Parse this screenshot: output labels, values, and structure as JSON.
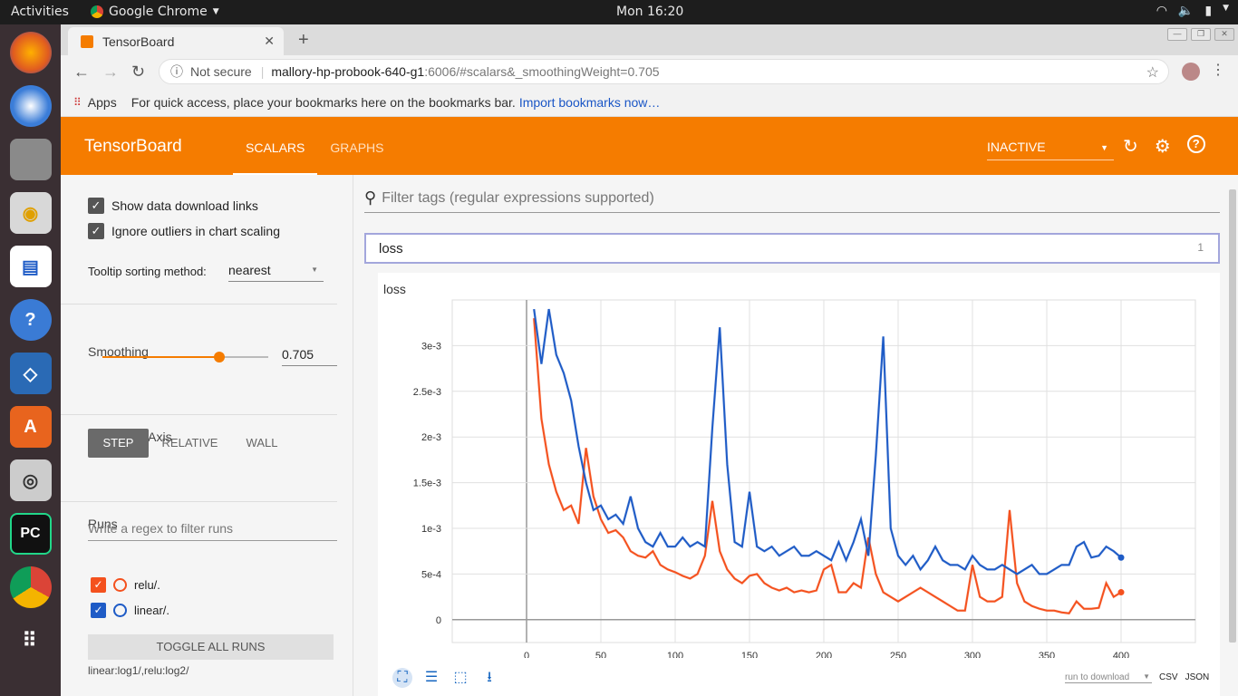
{
  "os": {
    "activities": "Activities",
    "app_name": "Google Chrome",
    "clock": "Mon 16:20"
  },
  "browser": {
    "tab_title": "TensorBoard",
    "security": "Not secure",
    "url_host": "mallory-hp-probook-640-g1",
    "url_path": ":6006/#scalars&_smoothingWeight=0.705",
    "bookmarks_apps": "Apps",
    "bookmarks_tip": "For quick access, place your bookmarks here on the bookmarks bar.",
    "bookmarks_link": "Import bookmarks now…"
  },
  "header": {
    "brand": "TensorBoard",
    "tabs": [
      "SCALARS",
      "GRAPHS"
    ],
    "active_tab": "SCALARS",
    "status": "INACTIVE",
    "accent": "#f57c00"
  },
  "sidebar": {
    "show_download": "Show data download links",
    "ignore_outliers": "Ignore outliers in chart scaling",
    "tooltip_label": "Tooltip sorting method:",
    "tooltip_value": "nearest",
    "smoothing_label": "Smoothing",
    "smoothing_value": "0.705",
    "smoothing_fraction": 0.705,
    "haxis_label": "Horizontal Axis",
    "haxis_options": [
      "STEP",
      "RELATIVE",
      "WALL"
    ],
    "haxis_selected": "STEP",
    "runs_label": "Runs",
    "runs_placeholder": "Write a regex to filter runs",
    "runs": [
      {
        "name": "relu/.",
        "color": "#f4511e",
        "checked": true
      },
      {
        "name": "linear/.",
        "color": "#1e5bc6",
        "checked": true
      }
    ],
    "toggle_all": "TOGGLE ALL RUNS",
    "run_summary": "linear:log1/,relu:log2/"
  },
  "main": {
    "filter_placeholder": "Filter tags (regular expressions supported)",
    "category": "loss",
    "category_count": "1",
    "card_title": "loss",
    "download_select": "run to download",
    "csv": "CSV",
    "json": "JSON"
  },
  "chart_data": {
    "type": "line",
    "title": "loss",
    "xlabel": "",
    "ylabel": "",
    "xlim": [
      -50,
      450
    ],
    "ylim": [
      -0.00025,
      0.0035
    ],
    "x_ticks": [
      "0",
      "50",
      "100",
      "150",
      "200",
      "250",
      "300",
      "350",
      "400"
    ],
    "y_ticks": [
      "0",
      "5e-4",
      "1e-3",
      "1.5e-3",
      "2e-3",
      "2.5e-3",
      "3e-3"
    ],
    "grid": true,
    "series": [
      {
        "name": "relu/.",
        "color": "#f4511e",
        "x": [
          5,
          10,
          15,
          20,
          25,
          30,
          35,
          40,
          45,
          50,
          55,
          60,
          65,
          70,
          75,
          80,
          85,
          90,
          95,
          100,
          105,
          110,
          115,
          120,
          125,
          130,
          135,
          140,
          145,
          150,
          155,
          160,
          165,
          170,
          175,
          180,
          185,
          190,
          195,
          200,
          205,
          210,
          215,
          220,
          225,
          230,
          235,
          240,
          245,
          250,
          255,
          260,
          265,
          270,
          275,
          280,
          285,
          290,
          295,
          300,
          305,
          310,
          315,
          320,
          325,
          330,
          335,
          340,
          345,
          350,
          355,
          360,
          365,
          370,
          375,
          380,
          385,
          390,
          395,
          400
        ],
        "y": [
          0.0033,
          0.0022,
          0.0017,
          0.0014,
          0.0012,
          0.00125,
          0.00105,
          0.00188,
          0.00135,
          0.0011,
          0.00095,
          0.00098,
          0.0009,
          0.00075,
          0.0007,
          0.00068,
          0.00075,
          0.0006,
          0.00055,
          0.00052,
          0.00048,
          0.00045,
          0.0005,
          0.0007,
          0.0013,
          0.00075,
          0.00055,
          0.00045,
          0.0004,
          0.00048,
          0.0005,
          0.0004,
          0.00035,
          0.00032,
          0.00035,
          0.0003,
          0.00032,
          0.0003,
          0.00032,
          0.00055,
          0.0006,
          0.0003,
          0.0003,
          0.0004,
          0.00035,
          0.0009,
          0.0005,
          0.0003,
          0.00025,
          0.0002,
          0.00025,
          0.0003,
          0.00035,
          0.0003,
          0.00025,
          0.0002,
          0.00015,
          0.0001,
          0.0001,
          0.0006,
          0.00025,
          0.0002,
          0.0002,
          0.00025,
          0.0012,
          0.0004,
          0.0002,
          0.00015,
          0.00012,
          0.0001,
          0.0001,
          8e-05,
          7e-05,
          0.0002,
          0.00012,
          0.00012,
          0.00013,
          0.0004,
          0.00025,
          0.0003
        ]
      },
      {
        "name": "linear/.",
        "color": "#1e5bc6",
        "x": [
          5,
          10,
          15,
          20,
          25,
          30,
          35,
          40,
          45,
          50,
          55,
          60,
          65,
          70,
          75,
          80,
          85,
          90,
          95,
          100,
          105,
          110,
          115,
          120,
          125,
          130,
          135,
          140,
          145,
          150,
          155,
          160,
          165,
          170,
          175,
          180,
          185,
          190,
          195,
          200,
          205,
          210,
          215,
          220,
          225,
          230,
          235,
          240,
          245,
          250,
          255,
          260,
          265,
          270,
          275,
          280,
          285,
          290,
          295,
          300,
          305,
          310,
          315,
          320,
          325,
          330,
          335,
          340,
          345,
          350,
          355,
          360,
          365,
          370,
          375,
          380,
          385,
          390,
          395,
          400
        ],
        "y": [
          0.0034,
          0.0028,
          0.0034,
          0.0029,
          0.0027,
          0.0024,
          0.0019,
          0.0015,
          0.0012,
          0.00125,
          0.0011,
          0.00115,
          0.00105,
          0.00135,
          0.001,
          0.00085,
          0.0008,
          0.00095,
          0.0008,
          0.0008,
          0.0009,
          0.0008,
          0.00085,
          0.0008,
          0.0021,
          0.0032,
          0.0017,
          0.00085,
          0.0008,
          0.0014,
          0.0008,
          0.00075,
          0.0008,
          0.0007,
          0.00075,
          0.0008,
          0.0007,
          0.0007,
          0.00075,
          0.0007,
          0.00065,
          0.00085,
          0.00065,
          0.00085,
          0.0011,
          0.0007,
          0.0018,
          0.0031,
          0.001,
          0.0007,
          0.0006,
          0.0007,
          0.00055,
          0.00065,
          0.0008,
          0.00065,
          0.0006,
          0.0006,
          0.00055,
          0.0007,
          0.0006,
          0.00055,
          0.00055,
          0.0006,
          0.00055,
          0.0005,
          0.00055,
          0.0006,
          0.0005,
          0.0005,
          0.00055,
          0.0006,
          0.0006,
          0.0008,
          0.00085,
          0.00068,
          0.0007,
          0.0008,
          0.00075,
          0.00068
        ]
      }
    ]
  }
}
